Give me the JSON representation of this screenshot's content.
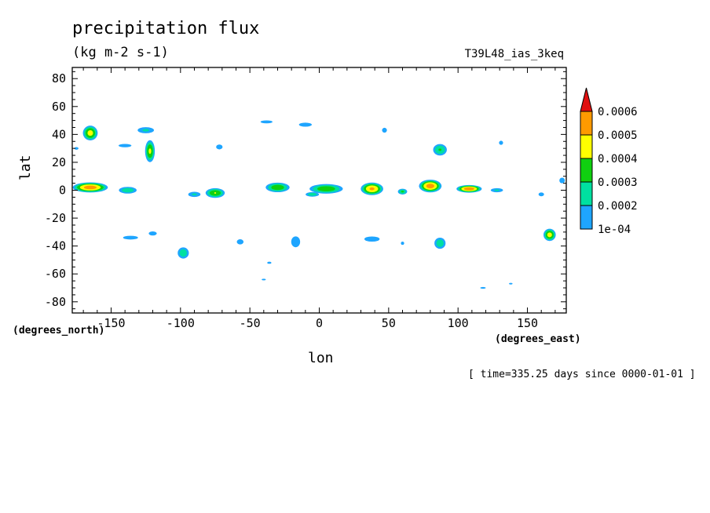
{
  "chart_data": {
    "type": "heatmap",
    "title": "precipitation flux",
    "subtitle": "(kg m-2 s-1)",
    "run_label": "T39L48_ias_3keq",
    "xlabel": "lon",
    "ylabel": "lat",
    "x_units": "(degrees_east)",
    "y_units": "(degrees_north)",
    "footer": "[ time=335.25 days since 0000-01-01 ]",
    "xlim": [
      -178,
      178
    ],
    "ylim": [
      -88,
      88
    ],
    "x_ticks": [
      -150,
      -100,
      -50,
      0,
      50,
      100,
      150
    ],
    "x_tick_labels": [
      "-150",
      "-100",
      "-50",
      "0",
      "50",
      "100",
      "150"
    ],
    "y_ticks": [
      80,
      60,
      40,
      20,
      0,
      -20,
      -40,
      -60,
      -80
    ],
    "y_tick_labels": [
      "80",
      "60",
      "40",
      "20",
      "0",
      "-20",
      "-40",
      "-60",
      "-80"
    ],
    "levels": [
      0.0001,
      0.0002,
      0.0003,
      0.0004,
      0.0005,
      0.0006
    ],
    "level_labels": [
      "1e-04",
      "0.0002",
      "0.0003",
      "0.0004",
      "0.0005",
      "0.0006"
    ],
    "level_colors": [
      "#1ea5ff",
      "#00e0a0",
      "#10d010",
      "#ffff00",
      "#ff9a00",
      "#e01010"
    ],
    "blobs": [
      {
        "lon": -165,
        "lat": 41,
        "rx": 6,
        "ry": 6,
        "peak": 0.00045
      },
      {
        "lon": -125,
        "lat": 43,
        "rx": 8,
        "ry": 3,
        "peak": 0.00022
      },
      {
        "lon": -122,
        "lat": 28,
        "rx": 4,
        "ry": 9,
        "peak": 0.00042
      },
      {
        "lon": -140,
        "lat": 32,
        "rx": 8,
        "ry": 2,
        "peak": 0.00015
      },
      {
        "lon": -72,
        "lat": 31,
        "rx": 4,
        "ry": 3,
        "peak": 0.00015
      },
      {
        "lon": -38,
        "lat": 49,
        "rx": 8,
        "ry": 2,
        "peak": 0.00014
      },
      {
        "lon": -10,
        "lat": 47,
        "rx": 8,
        "ry": 2.5,
        "peak": 0.00015
      },
      {
        "lon": 47,
        "lat": 43,
        "rx": 3,
        "ry": 3,
        "peak": 0.00015
      },
      {
        "lon": 87,
        "lat": 29,
        "rx": 6,
        "ry": 5,
        "peak": 0.00031
      },
      {
        "lon": 131,
        "lat": 34,
        "rx": 3,
        "ry": 3,
        "peak": 0.00013
      },
      {
        "lon": -165,
        "lat": 2,
        "rx": 14,
        "ry": 4,
        "peak": 0.00056
      },
      {
        "lon": -138,
        "lat": 0,
        "rx": 8,
        "ry": 3,
        "peak": 0.00028
      },
      {
        "lon": -75,
        "lat": -2,
        "rx": 8,
        "ry": 4,
        "peak": 0.0004
      },
      {
        "lon": -90,
        "lat": -3,
        "rx": 6,
        "ry": 2.5,
        "peak": 0.00022
      },
      {
        "lon": -30,
        "lat": 2,
        "rx": 10,
        "ry": 4,
        "peak": 0.00038
      },
      {
        "lon": 5,
        "lat": 1,
        "rx": 14,
        "ry": 4,
        "peak": 0.00038
      },
      {
        "lon": 38,
        "lat": 1,
        "rx": 9,
        "ry": 5,
        "peak": 0.00052
      },
      {
        "lon": 60,
        "lat": -1,
        "rx": 4,
        "ry": 2.5,
        "peak": 0.00032
      },
      {
        "lon": 80,
        "lat": 3,
        "rx": 9,
        "ry": 5,
        "peak": 0.00056
      },
      {
        "lon": 108,
        "lat": 1,
        "rx": 10,
        "ry": 3,
        "peak": 0.00058
      },
      {
        "lon": 128,
        "lat": 0,
        "rx": 6,
        "ry": 2,
        "peak": 0.00022
      },
      {
        "lon": 160,
        "lat": -3,
        "rx": 3,
        "ry": 2,
        "peak": 0.00018
      },
      {
        "lon": 175,
        "lat": 7,
        "rx": 3,
        "ry": 3,
        "peak": 0.00018
      },
      {
        "lon": -136,
        "lat": -34,
        "rx": 10,
        "ry": 2.5,
        "peak": 0.00014
      },
      {
        "lon": -120,
        "lat": -31,
        "rx": 5,
        "ry": 2.5,
        "peak": 0.00015
      },
      {
        "lon": -98,
        "lat": -45,
        "rx": 5,
        "ry": 5,
        "peak": 0.00028
      },
      {
        "lon": -57,
        "lat": -37,
        "rx": 4,
        "ry": 3,
        "peak": 0.00016
      },
      {
        "lon": -17,
        "lat": -37,
        "rx": 5,
        "ry": 6,
        "peak": 0.00017
      },
      {
        "lon": 38,
        "lat": -35,
        "rx": 9,
        "ry": 3,
        "peak": 0.00016
      },
      {
        "lon": 60,
        "lat": -38,
        "rx": 2.5,
        "ry": 2.5,
        "peak": 0.00013
      },
      {
        "lon": 87,
        "lat": -38,
        "rx": 5,
        "ry": 5,
        "peak": 0.00028
      },
      {
        "lon": 166,
        "lat": -32,
        "rx": 5,
        "ry": 5,
        "peak": 0.00045
      },
      {
        "lon": -36,
        "lat": -52,
        "rx": 3,
        "ry": 1.5,
        "peak": 0.00013
      },
      {
        "lon": -40,
        "lat": -64,
        "rx": 3,
        "ry": 1.2,
        "peak": 0.00013
      },
      {
        "lon": 118,
        "lat": -70,
        "rx": 5,
        "ry": 1.5,
        "peak": 0.00012
      },
      {
        "lon": 138,
        "lat": -67,
        "rx": 3,
        "ry": 1.2,
        "peak": 0.00012
      },
      {
        "lon": -5,
        "lat": -3,
        "rx": 6,
        "ry": 2,
        "peak": 0.00028
      },
      {
        "lon": -175,
        "lat": 30,
        "rx": 3,
        "ry": 2,
        "peak": 0.00013
      }
    ]
  }
}
